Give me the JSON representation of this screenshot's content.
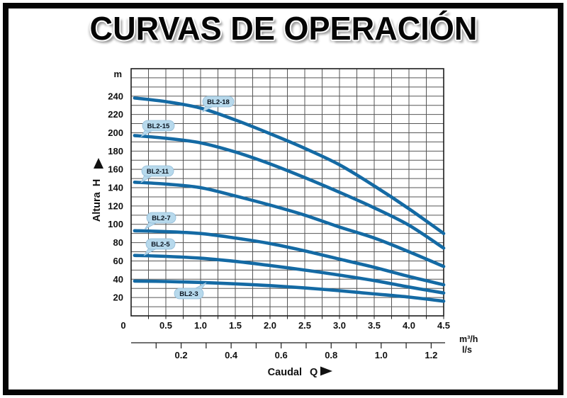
{
  "title": "CURVAS DE OPERACIÓN",
  "chart_data": {
    "type": "line",
    "title": "CURVAS DE OPERACIÓN",
    "xlabel": "Caudal Q",
    "ylabel": "Altura H",
    "y_unit": "m",
    "x_unit_primary": "m³/h",
    "x_unit_secondary": "l/s",
    "x_range_m3h": [
      0,
      4.5
    ],
    "y_range_m": [
      0,
      270
    ],
    "grid": true,
    "x_major_tick_labels": [
      "0",
      "0.5",
      "1.0",
      "1.5",
      "2.0",
      "2.5",
      "3.0",
      "3.5",
      "4.0",
      "4.5"
    ],
    "x_major_tick_values": [
      0,
      0.5,
      1,
      1.5,
      2,
      2.5,
      3,
      3.5,
      4,
      4.5
    ],
    "x_minor_step": 0.25,
    "y_tick_labels": [
      "20",
      "40",
      "60",
      "80",
      "100",
      "120",
      "140",
      "160",
      "180",
      "200",
      "220",
      "240"
    ],
    "y_tick_values": [
      20,
      40,
      60,
      80,
      100,
      120,
      140,
      160,
      180,
      200,
      220,
      240
    ],
    "y_minor_step": 10,
    "ls_axis": {
      "conversion_m3h_per_ls": 3.6,
      "tick_step": 0.1,
      "tick_min": 0.1,
      "tick_max": 1.2,
      "labels": [
        "0.2",
        "0.4",
        "0.6",
        "0.8",
        "1.0",
        "1.2"
      ],
      "label_values": [
        0.2,
        0.4,
        0.6,
        0.8,
        1.0,
        1.2
      ]
    },
    "x": [
      0.05,
      0.5,
      1.0,
      1.5,
      2.0,
      2.5,
      3.0,
      3.5,
      4.0,
      4.5
    ],
    "series": [
      {
        "name": "BL2-18",
        "values": [
          238,
          234,
          227,
          214,
          199,
          183,
          165,
          142,
          117,
          90
        ]
      },
      {
        "name": "BL2-15",
        "values": [
          197,
          194,
          189,
          179,
          166,
          151,
          135,
          118,
          99,
          74
        ]
      },
      {
        "name": "BL2-11",
        "values": [
          146,
          144,
          140,
          131,
          121,
          110,
          97,
          85,
          70,
          54
        ]
      },
      {
        "name": "BL2-7",
        "values": [
          93,
          92,
          90,
          85,
          79,
          71,
          62,
          53,
          43,
          34
        ]
      },
      {
        "name": "BL2-5",
        "values": [
          66,
          65,
          63,
          59.5,
          55,
          50,
          44.5,
          38.5,
          31.5,
          25
        ]
      },
      {
        "name": "BL2-3",
        "values": [
          38,
          37.5,
          36.5,
          35,
          33,
          30.5,
          27.5,
          24,
          20.5,
          16
        ]
      }
    ],
    "colors": {
      "curve": "#146aa4",
      "grid": "#565656",
      "plot_border": "#1c1c1c",
      "axis_text": "#111111",
      "bubble_fill": "#b7d9ec",
      "bubble_edge": "#93bcd8",
      "bubble_text": "#0a1420"
    }
  }
}
